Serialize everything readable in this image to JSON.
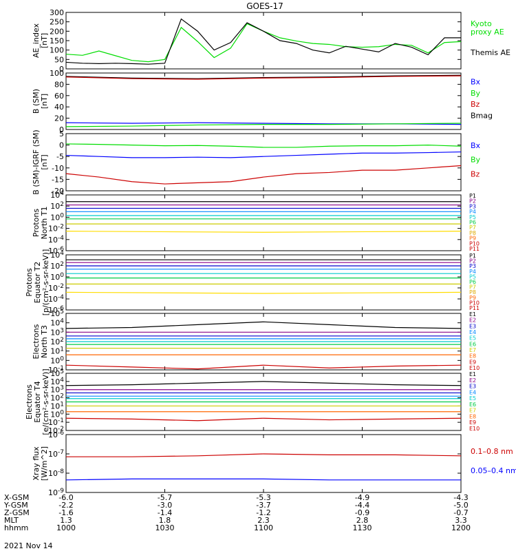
{
  "title": "GOES-17",
  "date_label": "2021 Nov 14",
  "colors": {
    "black": "#000000",
    "blue": "#0000ff",
    "green": "#00dd00",
    "red": "#cc0000"
  },
  "chart_data": [
    {
      "id": "ae",
      "type": "line",
      "ylabel": [
        "AE_index",
        "[nT]"
      ],
      "yscale": "linear",
      "ylim": [
        0,
        300
      ],
      "yticks": [
        "0",
        "50",
        "100",
        "150",
        "200",
        "250",
        "300"
      ],
      "yticks_values": [
        0,
        50,
        100,
        150,
        200,
        250,
        300
      ],
      "x": [
        0,
        5,
        10,
        15,
        20,
        25,
        30,
        35,
        40,
        45,
        50,
        55,
        60,
        65,
        70,
        75,
        80,
        85,
        90,
        95,
        100,
        105,
        110,
        115,
        120
      ],
      "legend": [
        {
          "text": "Kyoto",
          "color": "#00dd00"
        },
        {
          "text": "proxy AE",
          "color": "#00dd00"
        },
        {
          "text": "",
          "color": "#ffffff"
        },
        {
          "text": "Themis AE",
          "color": "#000000"
        }
      ],
      "series": [
        {
          "color": "#00dd00",
          "values": [
            78,
            72,
            95,
            70,
            45,
            38,
            50,
            220,
            145,
            60,
            110,
            240,
            200,
            165,
            148,
            135,
            130,
            118,
            115,
            118,
            130,
            125,
            85,
            140,
            145
          ]
        },
        {
          "color": "#000000",
          "values": [
            35,
            30,
            28,
            30,
            28,
            25,
            30,
            265,
            200,
            100,
            140,
            245,
            200,
            150,
            135,
            100,
            85,
            120,
            105,
            90,
            135,
            115,
            75,
            165,
            165
          ]
        }
      ]
    },
    {
      "id": "b",
      "type": "line",
      "ylabel": [
        "B (SM)",
        "[nT]"
      ],
      "yscale": "linear",
      "ylim": [
        0,
        100
      ],
      "yticks": [
        "0",
        "20",
        "40",
        "60",
        "80",
        "100"
      ],
      "yticks_values": [
        0,
        20,
        40,
        60,
        80,
        100
      ],
      "x": [
        0,
        20,
        40,
        60,
        80,
        100,
        120
      ],
      "legend": [
        {
          "text": "Bx",
          "color": "#0000ff"
        },
        {
          "text": "By",
          "color": "#00dd00"
        },
        {
          "text": "Bz",
          "color": "#cc0000"
        },
        {
          "text": "Bmag",
          "color": "#000000"
        }
      ],
      "series": [
        {
          "color": "#000000",
          "values": [
            94,
            91,
            90,
            92,
            93,
            95,
            96
          ]
        },
        {
          "color": "#cc0000",
          "values": [
            93,
            90,
            89,
            91,
            92,
            94,
            95
          ]
        },
        {
          "color": "#0000ff",
          "values": [
            12,
            11,
            12,
            11,
            10,
            10,
            9
          ]
        },
        {
          "color": "#00dd00",
          "values": [
            5,
            6,
            8,
            9,
            9,
            10,
            11
          ]
        }
      ]
    },
    {
      "id": "db",
      "type": "line",
      "ylabel": [
        "B (SM)-IGRF (SM)",
        "[nT]"
      ],
      "yscale": "linear",
      "ylim": [
        -20,
        5
      ],
      "yticks": [
        "5",
        "0",
        "-5",
        "-10",
        "-15",
        "-20"
      ],
      "yticks_values": [
        5,
        0,
        -5,
        -10,
        -15,
        -20
      ],
      "x": [
        0,
        10,
        20,
        30,
        40,
        50,
        60,
        70,
        80,
        90,
        100,
        110,
        120
      ],
      "legend": [
        {
          "text": "Bx",
          "color": "#0000ff"
        },
        {
          "text": "By",
          "color": "#00dd00"
        },
        {
          "text": "Bz",
          "color": "#cc0000"
        }
      ],
      "series": [
        {
          "color": "#00dd00",
          "values": [
            0.5,
            0.3,
            0,
            -0.3,
            -0.2,
            -0.5,
            -1,
            -1,
            -0.5,
            -0.3,
            -0.3,
            0,
            -0.5
          ]
        },
        {
          "color": "#0000ff",
          "values": [
            -4.5,
            -5,
            -5.5,
            -5.5,
            -5.3,
            -5.5,
            -5,
            -4.5,
            -4,
            -3.5,
            -3.5,
            -3.3,
            -3
          ]
        },
        {
          "color": "#cc0000",
          "values": [
            -12.5,
            -14,
            -16,
            -17,
            -16.5,
            -16,
            -14,
            -12.5,
            -12,
            -11,
            -11,
            -10,
            -9
          ]
        }
      ]
    },
    {
      "id": "pt1",
      "type": "line",
      "ylabel": [
        "Protons",
        "North T1"
      ],
      "yscale": "log",
      "ylim": [
        -6,
        4
      ],
      "yticks": [
        "10^4",
        "10^2",
        "10^0",
        "10^-2",
        "10^-4",
        "10^-6"
      ],
      "yticks_values": [
        4,
        2,
        0,
        -2,
        -4,
        -6
      ],
      "x": [
        0,
        60,
        120
      ],
      "legend_labels": [
        "P1",
        "P2",
        "P3",
        "P4",
        "P5",
        "P6",
        "P7",
        "P8",
        "P9",
        "P10",
        "P11"
      ],
      "legend_colors": [
        "#000000",
        "#880088",
        "#0000cc",
        "#0088ff",
        "#00cccc",
        "#00cc44",
        "#cccc00",
        "#ddaa00",
        "#ff6600",
        "#cc0000",
        "#cc0000"
      ],
      "series": [
        {
          "color": "#000000",
          "values": [
            2.8,
            2.8,
            2.8
          ]
        },
        {
          "color": "#880088",
          "values": [
            2.2,
            2.2,
            2.2
          ]
        },
        {
          "color": "#0000cc",
          "values": [
            1.6,
            1.6,
            1.6
          ]
        },
        {
          "color": "#0088ff",
          "values": [
            1.0,
            1.0,
            1.0
          ]
        },
        {
          "color": "#00cccc",
          "values": [
            0.3,
            0.3,
            0.3
          ]
        },
        {
          "color": "#00cc44",
          "values": [
            -0.3,
            -0.3,
            -0.3
          ]
        },
        {
          "color": "#cccc00",
          "values": [
            -1.2,
            -1.2,
            -1.2
          ]
        },
        {
          "color": "#ffdd00",
          "values": [
            -2.5,
            -2.7,
            -2.5
          ]
        }
      ]
    },
    {
      "id": "pt2",
      "type": "line",
      "ylabel": [
        "Protons",
        "Equator T2",
        "[p/(cm²-s-sr-keV)]"
      ],
      "yscale": "log",
      "ylim": [
        -6,
        4
      ],
      "yticks": [
        "10^4",
        "10^2",
        "10^0",
        "10^-2",
        "10^-4",
        "10^-6"
      ],
      "yticks_values": [
        4,
        2,
        0,
        -2,
        -4,
        -6
      ],
      "x": [
        0,
        60,
        120
      ],
      "legend_labels": [
        "P1",
        "P2",
        "P3",
        "P4",
        "P5",
        "P6",
        "P7",
        "P8",
        "P9",
        "P10",
        "P11"
      ],
      "legend_colors": [
        "#000000",
        "#880088",
        "#0000cc",
        "#0088ff",
        "#00cccc",
        "#00cc44",
        "#cccc00",
        "#ddaa00",
        "#ff6600",
        "#cc0000",
        "#cc0000"
      ],
      "series": [
        {
          "color": "#000000",
          "values": [
            3.1,
            3.1,
            3.1
          ]
        },
        {
          "color": "#880088",
          "values": [
            2.6,
            2.6,
            2.6
          ]
        },
        {
          "color": "#0000cc",
          "values": [
            2.0,
            2.0,
            2.0
          ]
        },
        {
          "color": "#0088ff",
          "values": [
            1.4,
            1.4,
            1.4
          ]
        },
        {
          "color": "#00cccc",
          "values": [
            0.6,
            0.6,
            0.6
          ]
        },
        {
          "color": "#00cc44",
          "values": [
            -0.2,
            -0.2,
            -0.2
          ]
        },
        {
          "color": "#cccc00",
          "values": [
            -1.3,
            -1.3,
            -1.3
          ]
        },
        {
          "color": "#ffdd00",
          "values": [
            -2.8,
            -3.0,
            -2.8
          ]
        }
      ]
    },
    {
      "id": "et3",
      "type": "line",
      "ylabel": [
        "Electrons",
        "North T3"
      ],
      "yscale": "log",
      "ylim": [
        -1,
        5
      ],
      "yticks": [
        "10^5",
        "10^4",
        "10^3",
        "10^2",
        "10^1",
        "10^0",
        "10^-1"
      ],
      "yticks_values": [
        5,
        4,
        3,
        2,
        1,
        0,
        -1
      ],
      "x": [
        0,
        20,
        40,
        60,
        80,
        100,
        120
      ],
      "legend_labels": [
        "E1",
        "E2",
        "E3",
        "E4",
        "E5",
        "E6",
        "E7",
        "E8",
        "E9",
        "E10"
      ],
      "legend_colors": [
        "#000000",
        "#880088",
        "#0000cc",
        "#0088ff",
        "#00cccc",
        "#00cc44",
        "#cccc00",
        "#ff6600",
        "#cc0000",
        "#cc0000"
      ],
      "series": [
        {
          "color": "#000000",
          "values": [
            3.4,
            3.5,
            3.8,
            4.1,
            3.8,
            3.5,
            3.4
          ]
        },
        {
          "color": "#880088",
          "values": [
            3.0,
            3.0,
            3.0,
            3.0,
            3.0,
            3.0,
            3.0
          ]
        },
        {
          "color": "#0000cc",
          "values": [
            2.6,
            2.6,
            2.6,
            2.6,
            2.6,
            2.6,
            2.6
          ]
        },
        {
          "color": "#0088ff",
          "values": [
            2.3,
            2.3,
            2.3,
            2.3,
            2.3,
            2.3,
            2.3
          ]
        },
        {
          "color": "#00cccc",
          "values": [
            2.0,
            2.0,
            2.0,
            2.0,
            2.0,
            2.0,
            2.0
          ]
        },
        {
          "color": "#00cc44",
          "values": [
            1.7,
            1.7,
            1.7,
            1.7,
            1.7,
            1.7,
            1.7
          ]
        },
        {
          "color": "#cccc00",
          "values": [
            1.3,
            1.3,
            1.3,
            1.3,
            1.3,
            1.3,
            1.3
          ]
        },
        {
          "color": "#ff6600",
          "values": [
            0.6,
            0.6,
            0.6,
            0.6,
            0.6,
            0.6,
            0.6
          ]
        },
        {
          "color": "#cc0000",
          "values": [
            -0.5,
            -0.7,
            -0.9,
            -0.5,
            -0.8,
            -0.6,
            -0.5
          ]
        }
      ]
    },
    {
      "id": "et4",
      "type": "line",
      "ylabel": [
        "Electrons",
        "Equator T4",
        "[e/(cm²-s-sr-keV)]"
      ],
      "yscale": "log",
      "ylim": [
        -2,
        5
      ],
      "yticks": [
        "10^5",
        "10^4",
        "10^3",
        "10^2",
        "10^1",
        "10^0",
        "10^-1",
        "10^-2"
      ],
      "yticks_values": [
        5,
        4,
        3,
        2,
        1,
        0,
        -1,
        -2
      ],
      "x": [
        0,
        20,
        40,
        60,
        80,
        100,
        120
      ],
      "legend_labels": [
        "E1",
        "E2",
        "E3",
        "E4",
        "E5",
        "E6",
        "E7",
        "E8",
        "E9",
        "E10"
      ],
      "legend_colors": [
        "#000000",
        "#880088",
        "#0000cc",
        "#0088ff",
        "#00cccc",
        "#00cc44",
        "#cccc00",
        "#ff6600",
        "#cc0000",
        "#cc0000"
      ],
      "series": [
        {
          "color": "#000000",
          "values": [
            3.5,
            3.6,
            3.8,
            4.0,
            3.8,
            3.6,
            3.5
          ]
        },
        {
          "color": "#880088",
          "values": [
            3.0,
            3.0,
            3.0,
            3.0,
            3.0,
            3.0,
            3.0
          ]
        },
        {
          "color": "#0000cc",
          "values": [
            2.6,
            2.6,
            2.6,
            2.6,
            2.6,
            2.6,
            2.6
          ]
        },
        {
          "color": "#0088ff",
          "values": [
            2.2,
            2.2,
            2.2,
            2.2,
            2.2,
            2.2,
            2.2
          ]
        },
        {
          "color": "#00cccc",
          "values": [
            1.9,
            1.9,
            1.9,
            1.9,
            1.9,
            1.9,
            1.9
          ]
        },
        {
          "color": "#00cc44",
          "values": [
            1.5,
            1.5,
            1.5,
            1.5,
            1.5,
            1.5,
            1.5
          ]
        },
        {
          "color": "#cccc00",
          "values": [
            1.0,
            1.0,
            1.0,
            1.0,
            1.0,
            1.0,
            1.0
          ]
        },
        {
          "color": "#ff6600",
          "values": [
            0.3,
            0.3,
            0.3,
            0.3,
            0.3,
            0.3,
            0.3
          ]
        },
        {
          "color": "#cc0000",
          "values": [
            -0.5,
            -0.6,
            -0.8,
            -0.5,
            -0.7,
            -0.6,
            -0.5
          ]
        }
      ]
    },
    {
      "id": "xray",
      "type": "line",
      "ylabel": [
        "Xray flux",
        "[W/m^2]"
      ],
      "yscale": "log",
      "ylim": [
        -9,
        -6
      ],
      "yticks": [
        "10^-6",
        "10^-7",
        "10^-8",
        "10^-9"
      ],
      "yticks_values": [
        -6,
        -7,
        -8,
        -9
      ],
      "x": [
        0,
        20,
        40,
        60,
        80,
        100,
        120
      ],
      "legend": [
        {
          "text": "0.1–0.8 nm",
          "color": "#cc0000"
        },
        {
          "text": "0.05–0.4 nm",
          "color": "#0000ff"
        }
      ],
      "series": [
        {
          "color": "#cc0000",
          "values": [
            -7.15,
            -7.15,
            -7.1,
            -7.0,
            -7.05,
            -7.05,
            -7.1
          ]
        },
        {
          "color": "#0000ff",
          "values": [
            -8.35,
            -8.3,
            -8.3,
            -8.3,
            -8.35,
            -8.35,
            -8.35
          ]
        }
      ]
    }
  ],
  "x_axis": {
    "xlim": [
      0,
      120
    ],
    "tick_positions": [
      0,
      30,
      60,
      90,
      120
    ],
    "rows": [
      {
        "label": "X-GSM",
        "values": [
          "-6.0",
          "-5.7",
          "-5.3",
          "-4.9",
          "-4.3"
        ]
      },
      {
        "label": "Y-GSM",
        "values": [
          "-2.2",
          "-3.0",
          "-3.7",
          "-4.4",
          "-5.0"
        ]
      },
      {
        "label": "Z-GSM",
        "values": [
          "-1.6",
          "-1.4",
          "-1.2",
          "-0.9",
          "-0.7"
        ]
      },
      {
        "label": "MLT",
        "values": [
          "1.3",
          "1.8",
          "2.3",
          "2.8",
          "3.3"
        ]
      },
      {
        "label": "hhmm",
        "values": [
          "1000",
          "1030",
          "1100",
          "1130",
          "1200"
        ]
      }
    ]
  }
}
